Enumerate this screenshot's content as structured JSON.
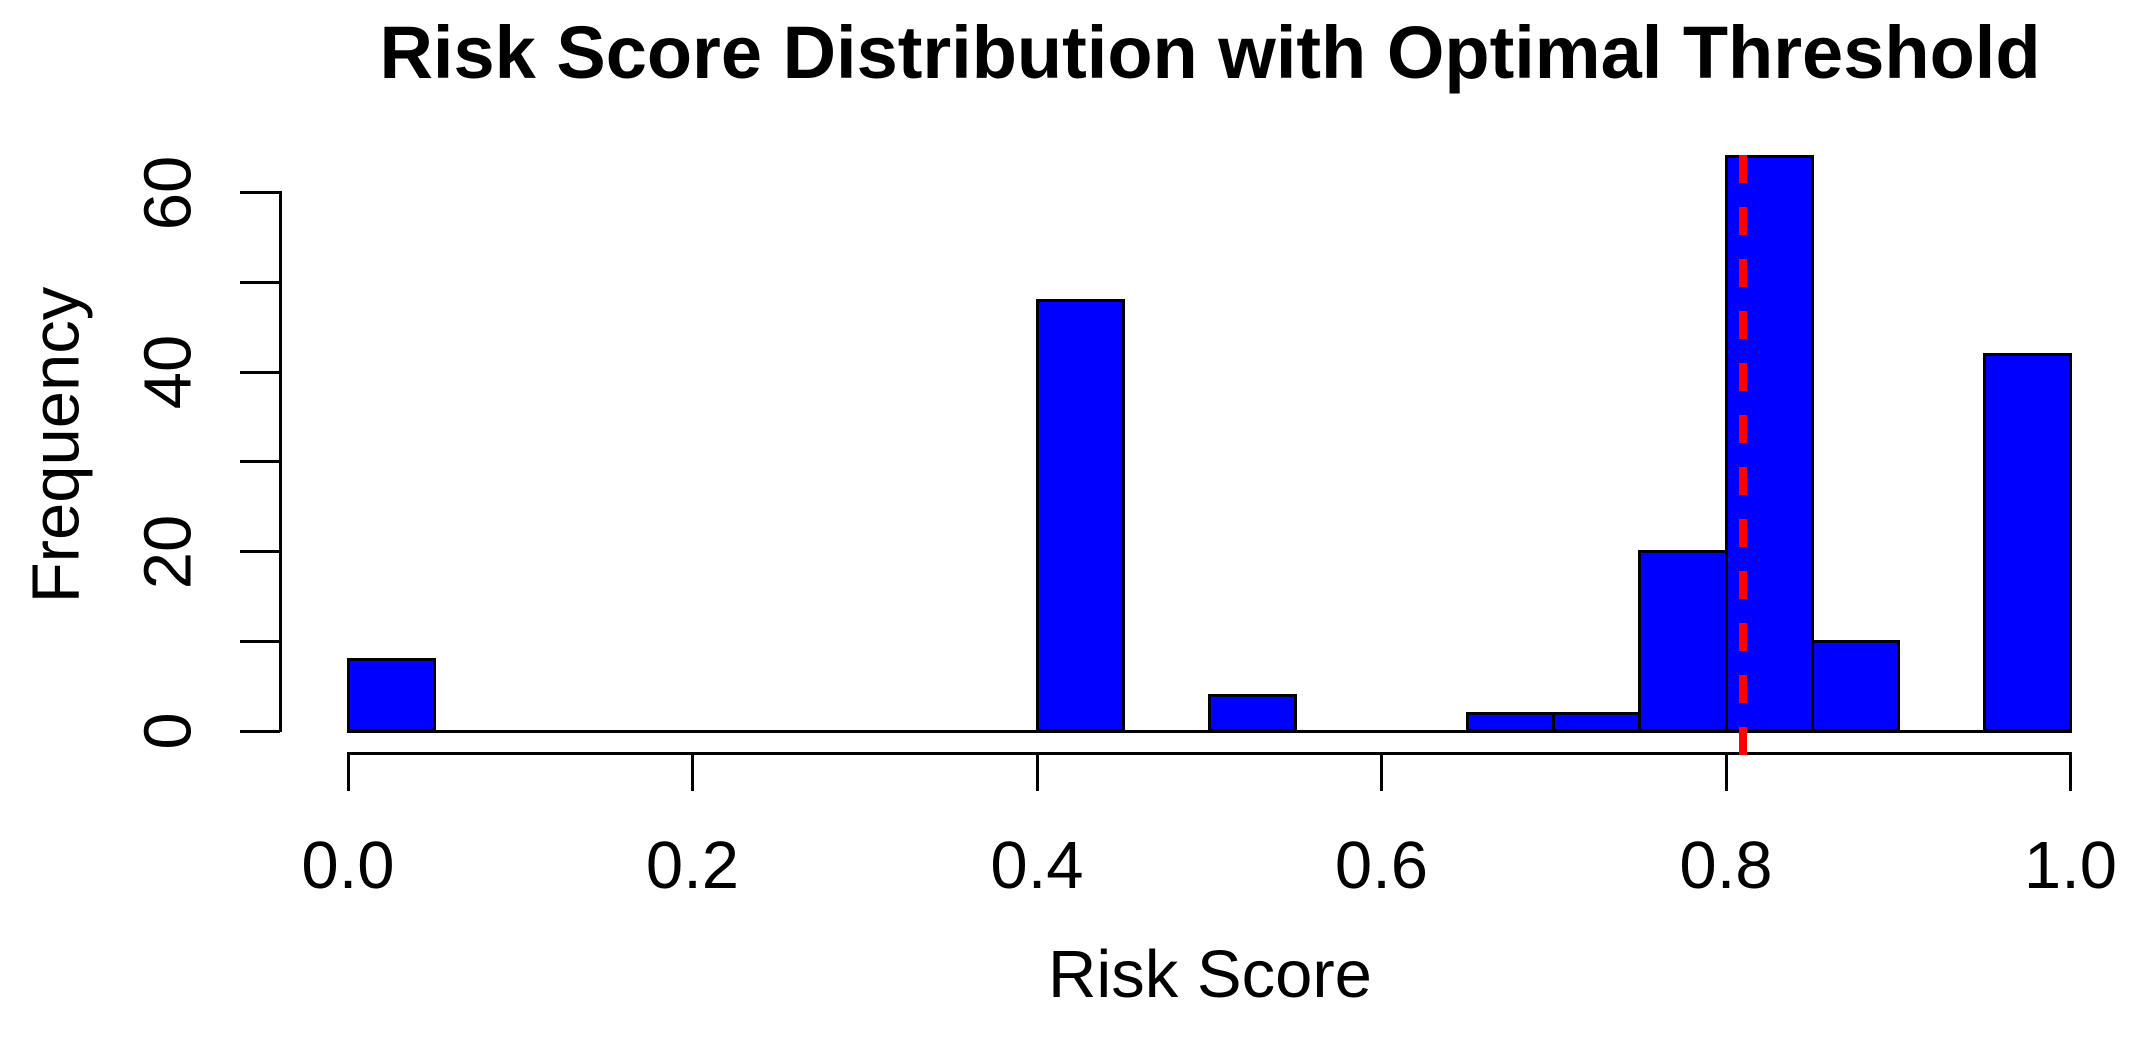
{
  "chart_data": {
    "type": "bar",
    "subtype": "histogram",
    "title": "Risk Score Distribution with Optimal Threshold",
    "xlabel": "Risk Score",
    "ylabel": "Frequency",
    "xlim": [
      0.0,
      1.0
    ],
    "ylim": [
      0,
      64
    ],
    "bin_width": 0.05,
    "grid": "off",
    "legend": "none",
    "bins": [
      {
        "x0": 0.0,
        "x1": 0.05,
        "count": 8
      },
      {
        "x0": 0.05,
        "x1": 0.1,
        "count": 0
      },
      {
        "x0": 0.1,
        "x1": 0.15,
        "count": 0
      },
      {
        "x0": 0.15,
        "x1": 0.2,
        "count": 0
      },
      {
        "x0": 0.2,
        "x1": 0.25,
        "count": 0
      },
      {
        "x0": 0.25,
        "x1": 0.3,
        "count": 0
      },
      {
        "x0": 0.3,
        "x1": 0.35,
        "count": 0
      },
      {
        "x0": 0.35,
        "x1": 0.4,
        "count": 0
      },
      {
        "x0": 0.4,
        "x1": 0.45,
        "count": 48
      },
      {
        "x0": 0.45,
        "x1": 0.5,
        "count": 0
      },
      {
        "x0": 0.5,
        "x1": 0.55,
        "count": 4
      },
      {
        "x0": 0.55,
        "x1": 0.6,
        "count": 0
      },
      {
        "x0": 0.6,
        "x1": 0.65,
        "count": 0
      },
      {
        "x0": 0.65,
        "x1": 0.7,
        "count": 2
      },
      {
        "x0": 0.7,
        "x1": 0.75,
        "count": 2
      },
      {
        "x0": 0.75,
        "x1": 0.8,
        "count": 20
      },
      {
        "x0": 0.8,
        "x1": 0.85,
        "count": 64
      },
      {
        "x0": 0.85,
        "x1": 0.9,
        "count": 10
      },
      {
        "x0": 0.9,
        "x1": 0.95,
        "count": 0
      },
      {
        "x0": 0.95,
        "x1": 1.0,
        "count": 42
      }
    ],
    "threshold": 0.81,
    "threshold_line_style": "dashed",
    "x_ticks": [
      {
        "value": 0.0,
        "label": "0.0"
      },
      {
        "value": 0.2,
        "label": "0.2"
      },
      {
        "value": 0.4,
        "label": "0.4"
      },
      {
        "value": 0.6,
        "label": "0.6"
      },
      {
        "value": 0.8,
        "label": "0.8"
      },
      {
        "value": 1.0,
        "label": "1.0"
      }
    ],
    "y_ticks": [
      {
        "value": 0,
        "label": "0"
      },
      {
        "value": 10,
        "label": ""
      },
      {
        "value": 20,
        "label": "20"
      },
      {
        "value": 30,
        "label": ""
      },
      {
        "value": 40,
        "label": "40"
      },
      {
        "value": 50,
        "label": ""
      },
      {
        "value": 60,
        "label": "60"
      }
    ],
    "colors": {
      "bar_fill": "#0000FF",
      "bar_border": "#000000",
      "threshold_line": "#FF0000",
      "axis": "#000000",
      "text": "#000000",
      "background": "#FFFFFF"
    }
  }
}
